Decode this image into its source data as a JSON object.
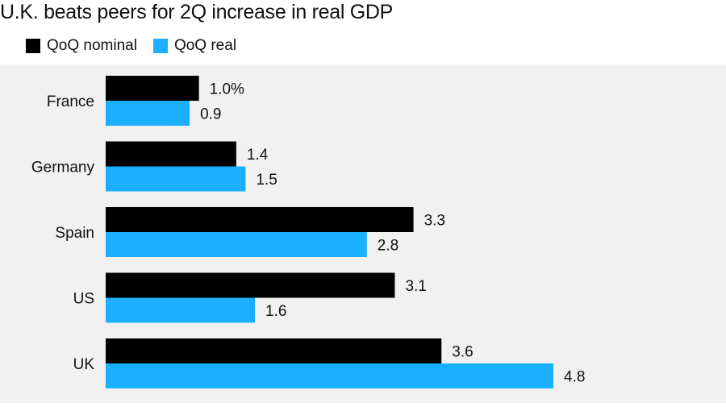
{
  "title": "U.K. beats peers for 2Q increase in real GDP",
  "colors": {
    "nominal": "#000000",
    "real": "#1aafff",
    "background": "#f1f1f1"
  },
  "legend": [
    {
      "name": "QoQ nominal",
      "color": "#000000"
    },
    {
      "name": "QoQ real",
      "color": "#1aafff"
    }
  ],
  "chart_data": {
    "type": "bar",
    "orientation": "horizontal",
    "title": "U.K. beats peers for 2Q increase in real GDP",
    "categories": [
      "France",
      "Germany",
      "Spain",
      "US",
      "UK"
    ],
    "series": [
      {
        "name": "QoQ nominal",
        "values": [
          1.0,
          1.4,
          3.3,
          3.1,
          3.6
        ],
        "labels": [
          "1.0%",
          "1.4",
          "3.3",
          "3.1",
          "3.6"
        ]
      },
      {
        "name": "QoQ real",
        "values": [
          0.9,
          1.5,
          2.8,
          1.6,
          4.8
        ],
        "labels": [
          "0.9",
          "1.5",
          "2.8",
          "1.6",
          "4.8"
        ]
      }
    ],
    "xlim": [
      0,
      4.8
    ],
    "grid": false,
    "legend_position": "top-left",
    "value_labels": true
  }
}
